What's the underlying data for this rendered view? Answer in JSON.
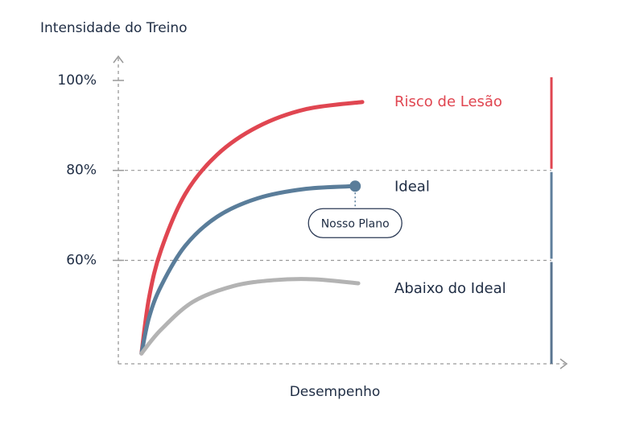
{
  "chart_data": {
    "type": "line",
    "y_label": "Intensidade do Treino",
    "x_label": "Desempenho",
    "xlim": [
      0,
      100
    ],
    "ylim": [
      37,
      105
    ],
    "yticks": [
      {
        "value": 60,
        "label": "60%"
      },
      {
        "value": 80,
        "label": "80%"
      },
      {
        "value": 100,
        "label": "100%"
      }
    ],
    "grid": true,
    "series": [
      {
        "name": "Risco de Lesão",
        "color": "#e04651",
        "x": [
          5.2,
          6.9,
          9.6,
          15.0,
          22.2,
          31.3,
          42.1,
          54.8
        ],
        "values": [
          39.3,
          51.7,
          62.3,
          74.7,
          83.5,
          89.7,
          93.6,
          95.2
        ]
      },
      {
        "name": "Ideal",
        "color": "#5a7d9a",
        "end_marker": true,
        "x": [
          5.2,
          6.9,
          9.6,
          15.0,
          22.2,
          31.3,
          42.1,
          53.2
        ],
        "values": [
          39.3,
          47.3,
          54.3,
          63.2,
          69.7,
          73.8,
          75.9,
          76.5
        ]
      },
      {
        "name": "Abaixo do Ideal",
        "color": "#b3b3b3",
        "x": [
          5.2,
          9.6,
          16.8,
          25.9,
          34.9,
          43.9,
          53.9
        ],
        "values": [
          39.3,
          44.6,
          50.8,
          54.3,
          55.6,
          55.8,
          54.9
        ]
      }
    ],
    "annotation": {
      "text": "Nosso Plano"
    },
    "zones": [
      {
        "range": [
          80,
          100
        ],
        "color": "#e04651"
      },
      {
        "range": [
          60,
          80
        ],
        "color": "#5f7f9c"
      },
      {
        "range": [
          37,
          60
        ],
        "color": "#5a7590"
      }
    ]
  }
}
